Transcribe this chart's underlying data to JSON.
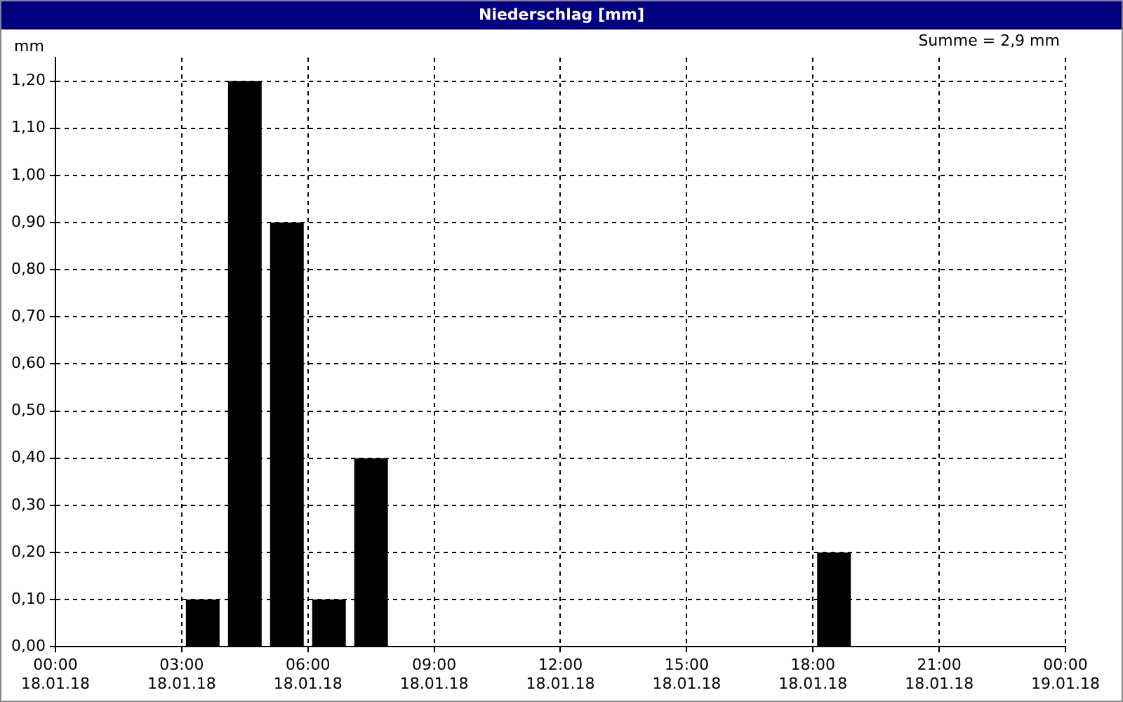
{
  "chart_data": {
    "type": "bar",
    "title": "Niederschlag [mm]",
    "ylabel": "mm",
    "annotations": [
      "Summe = 2,9 mm"
    ],
    "x": [
      "--01-18T03:30",
      "--01-18T04:30",
      "--01-18T05:30",
      "--01-18T06:30",
      "--01-18T07:30",
      "--01-18T18:30"
    ],
    "values": [
      0.1,
      1.2,
      0.9,
      0.1,
      0.4,
      0.2
    ],
    "color": "#000000",
    "xlim": [
      "--01-18T00:00",
      "--01-19T00:00"
    ],
    "xticks": [
      {
        "value": "--01-18T00:00",
        "label": "00:00\n18.01.18"
      },
      {
        "value": "--01-18T03:00",
        "label": "03:00\n18.01.18"
      },
      {
        "value": "--01-18T06:00",
        "label": "06:00\n18.01.18"
      },
      {
        "value": "--01-18T09:00",
        "label": "09:00\n18.01.18"
      },
      {
        "value": "--01-18T12:00",
        "label": "12:00\n18.01.18"
      },
      {
        "value": "--01-18T15:00",
        "label": "15:00\n18.01.18"
      },
      {
        "value": "--01-18T18:00",
        "label": "18:00\n18.01.18"
      },
      {
        "value": "--01-18T21:00",
        "label": "21:00\n18.01.18"
      },
      {
        "value": "--01-19T00:00",
        "label": "00:00\n19.01.18"
      }
    ],
    "ylim": [
      0,
      1.25
    ],
    "yticks": [
      {
        "value": 0,
        "label": "0,00"
      },
      {
        "value": 0.1,
        "label": "0,10"
      },
      {
        "value": 0.2,
        "label": "0,20"
      },
      {
        "value": 0.3,
        "label": "0,30"
      },
      {
        "value": 0.4,
        "label": "0,40"
      },
      {
        "value": 0.5,
        "label": "0,50"
      },
      {
        "value": 0.6,
        "label": "0,60"
      },
      {
        "value": 0.7,
        "label": "0,70"
      },
      {
        "value": 0.8,
        "label": "0,80"
      },
      {
        "value": 0.9,
        "label": "0,90"
      },
      {
        "value": 1.0,
        "label": "1,00"
      },
      {
        "value": 1.1,
        "label": "1,10"
      },
      {
        "value": 1.2,
        "label": "1,20"
      }
    ],
    "grid": true,
    "legend": false
  }
}
